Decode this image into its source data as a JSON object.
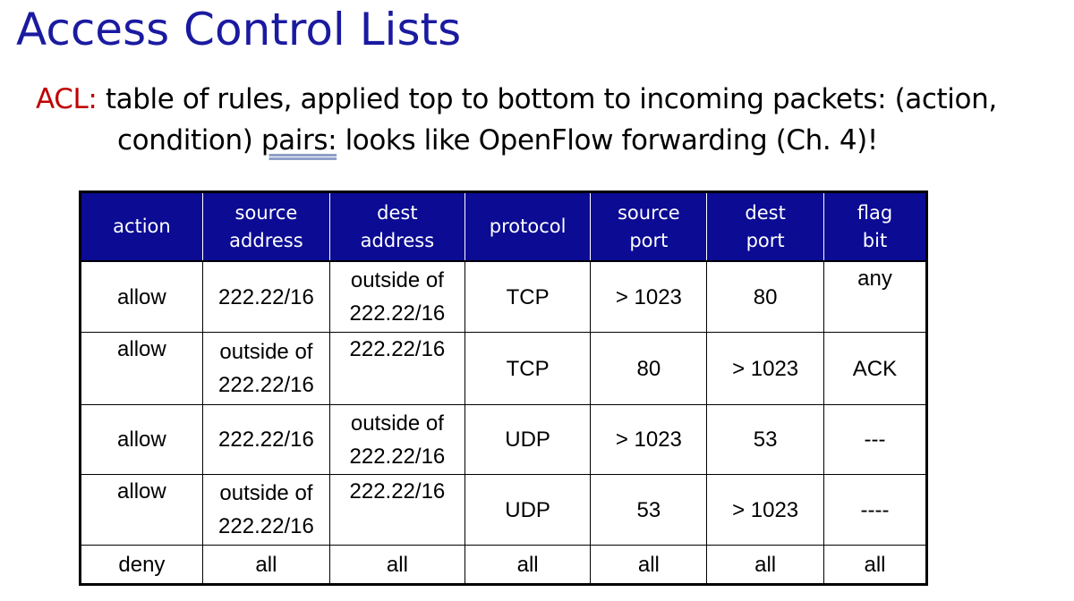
{
  "title": "Access Control Lists",
  "bullet": {
    "label": "ACL:",
    "line1": "table of rules, applied top to bottom to incoming packets: (action,",
    "line2_before": "condition) ",
    "line2_underlined": "pairs:",
    "line2_after": " looks like OpenFlow forwarding (Ch. 4)!"
  },
  "colors": {
    "title": "#1a1aa0",
    "acl_label": "#c00000",
    "header_bg": "#0b0b94",
    "header_text": "#ffffff"
  },
  "table": {
    "headers": [
      {
        "line1": "action",
        "line2": ""
      },
      {
        "line1": "source",
        "line2": "address"
      },
      {
        "line1": "dest",
        "line2": "address"
      },
      {
        "line1": "protocol",
        "line2": ""
      },
      {
        "line1": "source",
        "line2": "port"
      },
      {
        "line1": "dest",
        "line2": "port"
      },
      {
        "line1": "flag",
        "line2": "bit"
      }
    ],
    "rows": [
      {
        "action": "allow",
        "source_address": [
          "222.22/16"
        ],
        "dest_address": [
          "outside of",
          "222.22/16"
        ],
        "protocol": "TCP",
        "source_port": "> 1023",
        "dest_port": "80",
        "flag_bit": "any"
      },
      {
        "action": "allow",
        "source_address": [
          "outside of",
          "222.22/16"
        ],
        "dest_address": [
          "222.22/16"
        ],
        "protocol": "TCP",
        "source_port": "80",
        "dest_port": "> 1023",
        "flag_bit": "ACK"
      },
      {
        "action": "allow",
        "source_address": [
          "222.22/16"
        ],
        "dest_address": [
          "outside of",
          "222.22/16"
        ],
        "protocol": "UDP",
        "source_port": "> 1023",
        "dest_port": "53",
        "flag_bit": "---"
      },
      {
        "action": "allow",
        "source_address": [
          "outside of",
          "222.22/16"
        ],
        "dest_address": [
          "222.22/16"
        ],
        "protocol": "UDP",
        "source_port": "53",
        "dest_port": "> 1023",
        "flag_bit": "----"
      },
      {
        "action": "deny",
        "source_address": [
          "all"
        ],
        "dest_address": [
          "all"
        ],
        "protocol": "all",
        "source_port": "all",
        "dest_port": "all",
        "flag_bit": "all"
      }
    ]
  }
}
